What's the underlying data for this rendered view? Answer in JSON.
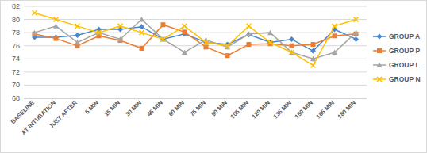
{
  "chart_data": {
    "type": "line",
    "categories": [
      "BASELINE",
      "AT INTUBATION",
      "JUST AFTER",
      "5 MIN",
      "15 MIN",
      "30 MIN",
      "45 MIN",
      "60 MIN",
      "75 MIN",
      "90 MIN",
      "105 MIN",
      "120 MIN",
      "135 MIN",
      "150 MIN",
      "165 MIN",
      "180 MIN"
    ],
    "series": [
      {
        "name": "GROUP A",
        "color": "#4a86c8",
        "marker": "diamond",
        "values": [
          77.3,
          77.3,
          77.6,
          78.5,
          78.5,
          78.9,
          77.0,
          77.8,
          76.5,
          76.2,
          77.7,
          76.5,
          77.0,
          75.2,
          78.5,
          77.0
        ]
      },
      {
        "name": "GROUP P",
        "color": "#ed7d31",
        "marker": "square",
        "values": [
          77.8,
          77.1,
          76.0,
          77.5,
          76.8,
          75.6,
          79.2,
          78.1,
          75.8,
          74.5,
          76.2,
          76.3,
          76.0,
          76.2,
          77.5,
          77.8
        ]
      },
      {
        "name": "GROUP L",
        "color": "#a5a5a5",
        "marker": "triangle",
        "values": [
          78.0,
          79.0,
          76.5,
          78.0,
          77.0,
          80.0,
          77.0,
          75.0,
          76.9,
          75.8,
          77.8,
          78.0,
          75.0,
          74.0,
          75.0,
          78.0
        ]
      },
      {
        "name": "GROUP N",
        "color": "#ffc000",
        "marker": "x",
        "values": [
          81.0,
          80.0,
          79.0,
          78.0,
          79.0,
          78.0,
          77.0,
          79.0,
          76.5,
          76.0,
          79.0,
          76.5,
          75.0,
          73.0,
          79.0,
          80.0
        ]
      }
    ],
    "ylim": [
      68,
      82
    ],
    "yticks": [
      68,
      70,
      72,
      74,
      76,
      78,
      80,
      82
    ],
    "grid": true,
    "legend": "right"
  }
}
